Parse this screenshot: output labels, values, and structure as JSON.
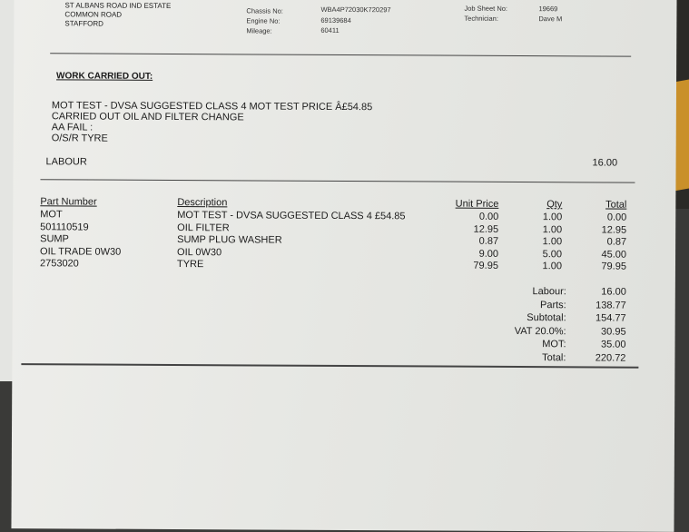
{
  "address": [
    "ST ALBANS ROAD IND ESTATE",
    "COMMON ROAD",
    "STAFFORD"
  ],
  "vehicle": {
    "chassis_label": "Chassis No:",
    "chassis": "WBA4P72030K720297",
    "engine_label": "Engine No:",
    "engine": "69139684",
    "mileage_label": "Mileage:",
    "mileage": "60411"
  },
  "job": {
    "sheet_label": "Job Sheet No:",
    "sheet": "19669",
    "tech_label": "Technician:",
    "tech": "Dave M"
  },
  "work": {
    "heading": "WORK CARRIED OUT:",
    "lines": [
      "MOT TEST - DVSA SUGGESTED CLASS 4 MOT TEST PRICE Â£54.85",
      "CARRIED OUT OIL AND FILTER CHANGE",
      "AA FAIL :",
      "O/S/R TYRE"
    ],
    "labour_label": "LABOUR",
    "labour_value": "16.00"
  },
  "table": {
    "headers": [
      "Part Number",
      "Description",
      "Unit Price",
      "Qty",
      "Total"
    ],
    "rows": [
      [
        "MOT",
        "MOT TEST - DVSA SUGGESTED CLASS 4 £54.85",
        "0.00",
        "1.00",
        "0.00"
      ],
      [
        "501110519",
        "OIL FILTER",
        "12.95",
        "1.00",
        "12.95"
      ],
      [
        "SUMP",
        "SUMP PLUG WASHER",
        "0.87",
        "1.00",
        "0.87"
      ],
      [
        "OIL TRADE 0W30",
        "OIL 0W30",
        "9.00",
        "5.00",
        "45.00"
      ],
      [
        "2753020",
        "TYRE",
        "79.95",
        "1.00",
        "79.95"
      ]
    ]
  },
  "totals": [
    [
      "Labour:",
      "16.00"
    ],
    [
      "Parts:",
      "138.77"
    ],
    [
      "Subtotal:",
      "154.77"
    ],
    [
      "VAT 20.0%:",
      "30.95"
    ],
    [
      "MOT:",
      "35.00"
    ],
    [
      "Total:",
      "220.72"
    ]
  ]
}
